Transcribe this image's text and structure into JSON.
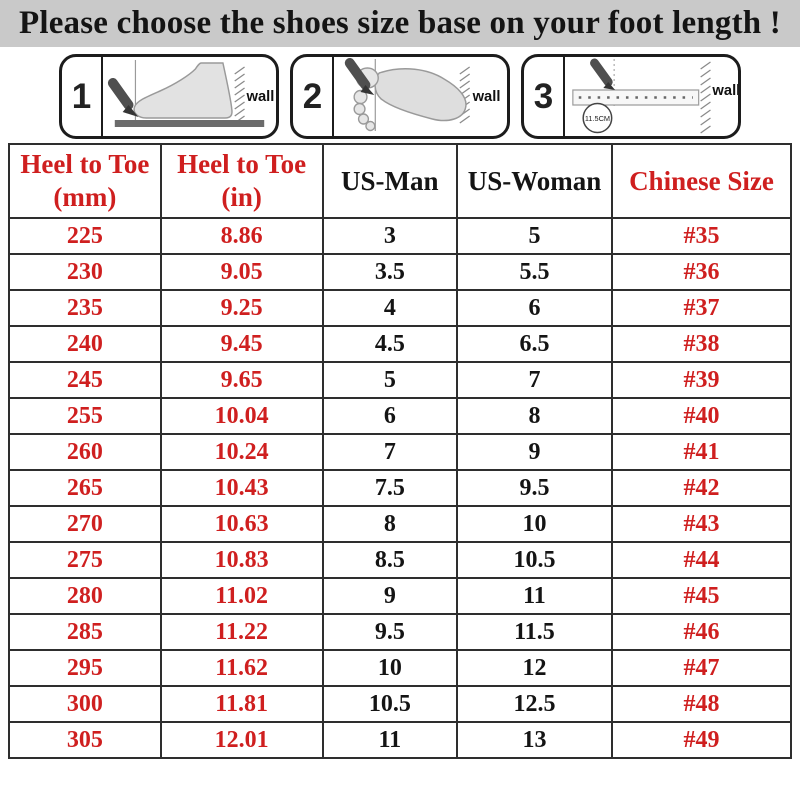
{
  "title": "Please choose the shoes size base on your foot length !",
  "colors": {
    "red": "#cf1f1f",
    "title_bg": "#c9c9c9",
    "text": "#141414",
    "border": "#2e2e2e"
  },
  "steps": [
    {
      "number": "1",
      "wall_label": "wall"
    },
    {
      "number": "2",
      "wall_label": "wall"
    },
    {
      "number": "3",
      "wall_label": "wall",
      "ruler_label": "11.5CM"
    }
  ],
  "table": {
    "headers": [
      {
        "line1": "Heel to Toe",
        "line2": "(mm)"
      },
      {
        "line1": "Heel to Toe",
        "line2": "(in)"
      },
      {
        "line1": "US-Man",
        "line2": ""
      },
      {
        "line1": "US-Woman",
        "line2": ""
      },
      {
        "line1": "Chinese Size",
        "line2": ""
      }
    ],
    "red_columns": [
      0,
      1,
      4
    ],
    "rows": [
      [
        "225",
        "8.86",
        "3",
        "5",
        "#35"
      ],
      [
        "230",
        "9.05",
        "3.5",
        "5.5",
        "#36"
      ],
      [
        "235",
        "9.25",
        "4",
        "6",
        "#37"
      ],
      [
        "240",
        "9.45",
        "4.5",
        "6.5",
        "#38"
      ],
      [
        "245",
        "9.65",
        "5",
        "7",
        "#39"
      ],
      [
        "255",
        "10.04",
        "6",
        "8",
        "#40"
      ],
      [
        "260",
        "10.24",
        "7",
        "9",
        "#41"
      ],
      [
        "265",
        "10.43",
        "7.5",
        "9.5",
        "#42"
      ],
      [
        "270",
        "10.63",
        "8",
        "10",
        "#43"
      ],
      [
        "275",
        "10.83",
        "8.5",
        "10.5",
        "#44"
      ],
      [
        "280",
        "11.02",
        "9",
        "11",
        "#45"
      ],
      [
        "285",
        "11.22",
        "9.5",
        "11.5",
        "#46"
      ],
      [
        "295",
        "11.62",
        "10",
        "12",
        "#47"
      ],
      [
        "300",
        "11.81",
        "10.5",
        "12.5",
        "#48"
      ],
      [
        "305",
        "12.01",
        "11",
        "13",
        "#49"
      ]
    ]
  }
}
